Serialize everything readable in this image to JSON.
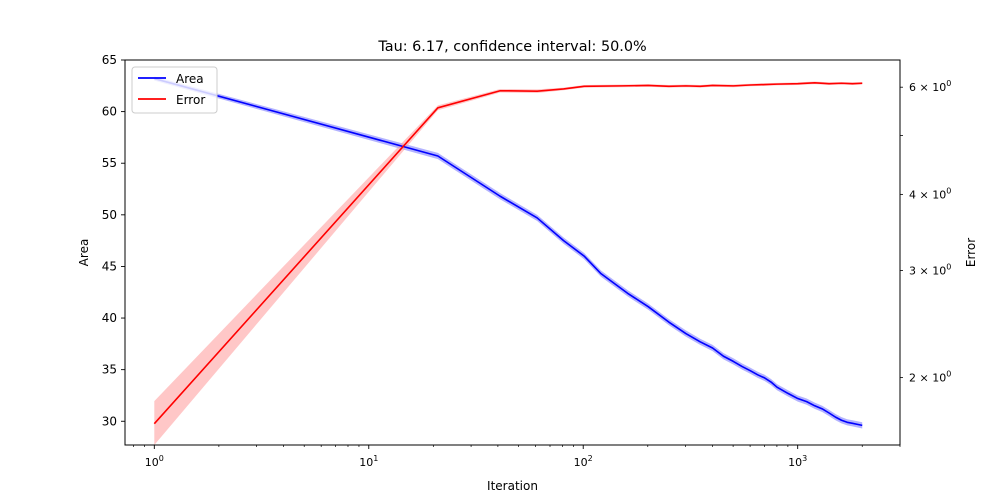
{
  "chart_data": {
    "type": "line",
    "title": "Tau: 6.17, confidence interval: 50.0%",
    "xlabel": "Iteration",
    "ylabel": "Area",
    "y2label": "Error",
    "x_scale": "log",
    "y2_scale": "log",
    "xlim": [
      0.73,
      3000
    ],
    "ylim": [
      27.7,
      65
    ],
    "y2lim": [
      1.55,
      6.65
    ],
    "x_ticks": [
      {
        "value": 1,
        "base": "10",
        "exp": "0"
      },
      {
        "value": 10,
        "base": "10",
        "exp": "1"
      },
      {
        "value": 100,
        "base": "10",
        "exp": "2"
      },
      {
        "value": 1000,
        "base": "10",
        "exp": "3"
      }
    ],
    "y_ticks": [
      "30",
      "35",
      "40",
      "45",
      "50",
      "55",
      "60",
      "65"
    ],
    "y2_ticks": [
      {
        "value": 2,
        "mantissa": "2",
        "base": "10",
        "exp": "0"
      },
      {
        "value": 3,
        "mantissa": "3",
        "base": "10",
        "exp": "0"
      },
      {
        "value": 4,
        "mantissa": "4",
        "base": "10",
        "exp": "0"
      },
      {
        "value": 5,
        "mantissa": "",
        "base": "",
        "exp": ""
      },
      {
        "value": 6,
        "mantissa": "6",
        "base": "10",
        "exp": "0"
      }
    ],
    "legend_position": "top-left",
    "grid": false,
    "series": [
      {
        "name": "Area",
        "axis": "left",
        "color": "#0000ff",
        "band_color": "#8080ff",
        "x": [
          1,
          21,
          41,
          61,
          81,
          101,
          121,
          161,
          201,
          251,
          301,
          351,
          401,
          451,
          501,
          551,
          601,
          651,
          701,
          751,
          801,
          901,
          1001,
          1101,
          1201,
          1301,
          1401,
          1501,
          1601,
          1701,
          1801,
          1901,
          2000
        ],
        "values": [
          63.2,
          55.7,
          51.8,
          49.7,
          47.5,
          46.0,
          44.3,
          42.4,
          41.1,
          39.6,
          38.5,
          37.7,
          37.1,
          36.3,
          35.8,
          35.3,
          34.9,
          34.5,
          34.2,
          33.8,
          33.3,
          32.7,
          32.2,
          31.9,
          31.5,
          31.2,
          30.8,
          30.4,
          30.1,
          29.9,
          29.8,
          29.7,
          29.6
        ],
        "band_half_width": [
          0.2,
          0.3,
          0.3,
          0.3,
          0.3,
          0.3,
          0.3,
          0.3,
          0.3,
          0.3,
          0.3,
          0.3,
          0.3,
          0.3,
          0.3,
          0.3,
          0.3,
          0.3,
          0.3,
          0.3,
          0.3,
          0.3,
          0.3,
          0.3,
          0.3,
          0.3,
          0.3,
          0.3,
          0.3,
          0.3,
          0.3,
          0.3,
          0.3
        ]
      },
      {
        "name": "Error",
        "axis": "right",
        "color": "#ff0000",
        "band_color": "#ff9999",
        "x": [
          1,
          21,
          41,
          61,
          81,
          101,
          151,
          201,
          251,
          301,
          351,
          401,
          501,
          601,
          701,
          801,
          1001,
          1201,
          1401,
          1601,
          1801,
          2000
        ],
        "values": [
          1.68,
          5.55,
          5.92,
          5.91,
          5.96,
          6.02,
          6.03,
          6.04,
          6.02,
          6.03,
          6.02,
          6.04,
          6.03,
          6.05,
          6.06,
          6.07,
          6.08,
          6.1,
          6.08,
          6.09,
          6.08,
          6.09
        ],
        "band_low": [
          1.55,
          5.5,
          5.88,
          5.87,
          5.93,
          5.99,
          6.0,
          6.01,
          5.99,
          6.0,
          5.99,
          6.01,
          6.0,
          6.02,
          6.03,
          6.04,
          6.05,
          6.07,
          6.05,
          6.06,
          6.05,
          6.06
        ],
        "band_high": [
          1.83,
          5.6,
          5.96,
          5.95,
          5.99,
          6.05,
          6.06,
          6.07,
          6.05,
          6.06,
          6.05,
          6.07,
          6.06,
          6.08,
          6.09,
          6.1,
          6.11,
          6.13,
          6.11,
          6.12,
          6.11,
          6.12
        ]
      }
    ]
  }
}
